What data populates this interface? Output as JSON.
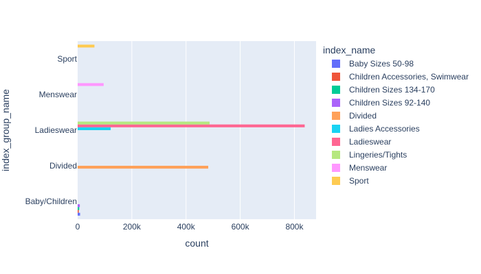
{
  "chart_data": {
    "type": "bar",
    "orientation": "horizontal",
    "barmode": "group",
    "title": "",
    "xlabel": "count",
    "ylabel": "index_group_name",
    "xlim": [
      0,
      880000
    ],
    "x_ticks": [
      0,
      200000,
      400000,
      600000,
      800000
    ],
    "x_tick_labels": [
      "0",
      "200k",
      "400k",
      "600k",
      "800k"
    ],
    "categories": [
      "Baby/Children",
      "Divided",
      "Ladieswear",
      "Menswear",
      "Sport"
    ],
    "grid": true,
    "legend_position": "right",
    "legend_title": "index_name",
    "series": [
      {
        "name": "Baby Sizes 50-98",
        "color": "#636efa",
        "values": [
          9000,
          null,
          null,
          null,
          null
        ]
      },
      {
        "name": "Children Accessories, Swimwear",
        "color": "#EF553B",
        "values": [
          4000,
          null,
          null,
          null,
          null
        ]
      },
      {
        "name": "Children Sizes 134-170",
        "color": "#00cc96",
        "values": [
          6000,
          null,
          null,
          null,
          null
        ]
      },
      {
        "name": "Children Sizes 92-140",
        "color": "#ab63fa",
        "values": [
          8000,
          null,
          null,
          null,
          null
        ]
      },
      {
        "name": "Divided",
        "color": "#FFA15A",
        "values": [
          null,
          482000,
          null,
          null,
          null
        ]
      },
      {
        "name": "Ladies Accessories",
        "color": "#19d3f3",
        "values": [
          null,
          null,
          122000,
          null,
          null
        ]
      },
      {
        "name": "Ladieswear",
        "color": "#FF6692",
        "values": [
          null,
          null,
          838000,
          null,
          null
        ]
      },
      {
        "name": "Lingeries/Tights",
        "color": "#B6E880",
        "values": [
          null,
          null,
          487000,
          null,
          null
        ]
      },
      {
        "name": "Menswear",
        "color": "#FF97FF",
        "values": [
          null,
          null,
          null,
          96000,
          null
        ]
      },
      {
        "name": "Sport",
        "color": "#FECB52",
        "values": [
          null,
          null,
          null,
          null,
          62000
        ]
      }
    ]
  }
}
